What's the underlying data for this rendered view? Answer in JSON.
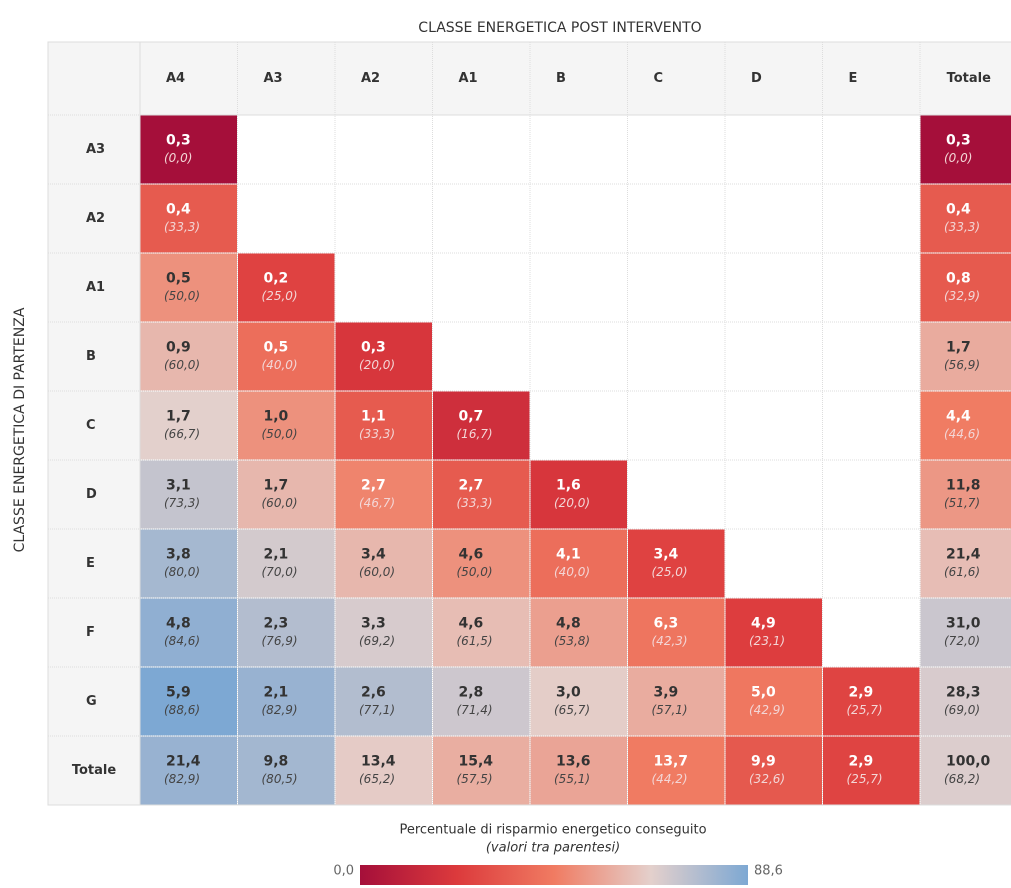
{
  "chart_data": {
    "type": "heatmap",
    "title": "CLASSE ENERGETICA POST INTERVENTO",
    "y_label": "CLASSE ENERGETICA DI PARTENZA",
    "columns": [
      "A4",
      "A3",
      "A2",
      "A1",
      "B",
      "C",
      "D",
      "E",
      "Totale"
    ],
    "rows": [
      "A3",
      "A2",
      "A1",
      "B",
      "C",
      "D",
      "E",
      "F",
      "G",
      "Totale"
    ],
    "values": [
      [
        0.3,
        null,
        null,
        null,
        null,
        null,
        null,
        null,
        0.3
      ],
      [
        0.4,
        null,
        null,
        null,
        null,
        null,
        null,
        null,
        0.4
      ],
      [
        0.5,
        0.2,
        null,
        null,
        null,
        null,
        null,
        null,
        0.8
      ],
      [
        0.9,
        0.5,
        0.3,
        null,
        null,
        null,
        null,
        null,
        1.7
      ],
      [
        1.7,
        1.0,
        1.1,
        0.7,
        null,
        null,
        null,
        null,
        4.4
      ],
      [
        3.1,
        1.7,
        2.7,
        2.7,
        1.6,
        null,
        null,
        null,
        11.8
      ],
      [
        3.8,
        2.1,
        3.4,
        4.6,
        4.1,
        3.4,
        null,
        null,
        21.4
      ],
      [
        4.8,
        2.3,
        3.3,
        4.6,
        4.8,
        6.3,
        4.9,
        null,
        31.0
      ],
      [
        5.9,
        2.1,
        2.6,
        2.8,
        3.0,
        3.9,
        5.0,
        2.9,
        28.3
      ],
      [
        21.4,
        9.8,
        13.4,
        15.4,
        13.6,
        13.7,
        9.9,
        2.9,
        100.0
      ]
    ],
    "value_labels": [
      [
        "0,3",
        null,
        null,
        null,
        null,
        null,
        null,
        null,
        "0,3"
      ],
      [
        "0,4",
        null,
        null,
        null,
        null,
        null,
        null,
        null,
        "0,4"
      ],
      [
        "0,5",
        "0,2",
        null,
        null,
        null,
        null,
        null,
        null,
        "0,8"
      ],
      [
        "0,9",
        "0,5",
        "0,3",
        null,
        null,
        null,
        null,
        null,
        "1,7"
      ],
      [
        "1,7",
        "1,0",
        "1,1",
        "0,7",
        null,
        null,
        null,
        null,
        "4,4"
      ],
      [
        "3,1",
        "1,7",
        "2,7",
        "2,7",
        "1,6",
        null,
        null,
        null,
        "11,8"
      ],
      [
        "3,8",
        "2,1",
        "3,4",
        "4,6",
        "4,1",
        "3,4",
        null,
        null,
        "21,4"
      ],
      [
        "4,8",
        "2,3",
        "3,3",
        "4,6",
        "4,8",
        "6,3",
        "4,9",
        null,
        "31,0"
      ],
      [
        "5,9",
        "2,1",
        "2,6",
        "2,8",
        "3,0",
        "3,9",
        "5,0",
        "2,9",
        "28,3"
      ],
      [
        "21,4",
        "9,8",
        "13,4",
        "15,4",
        "13,6",
        "13,7",
        "9,9",
        "2,9",
        "100,0"
      ]
    ],
    "savings": [
      [
        0.0,
        null,
        null,
        null,
        null,
        null,
        null,
        null,
        0.0
      ],
      [
        33.3,
        null,
        null,
        null,
        null,
        null,
        null,
        null,
        33.3
      ],
      [
        50.0,
        25.0,
        null,
        null,
        null,
        null,
        null,
        null,
        32.9
      ],
      [
        60.0,
        40.0,
        20.0,
        null,
        null,
        null,
        null,
        null,
        56.9
      ],
      [
        66.7,
        50.0,
        33.3,
        16.7,
        null,
        null,
        null,
        null,
        44.6
      ],
      [
        73.3,
        60.0,
        46.7,
        33.3,
        20.0,
        null,
        null,
        null,
        51.7
      ],
      [
        80.0,
        70.0,
        60.0,
        50.0,
        40.0,
        25.0,
        null,
        null,
        61.6
      ],
      [
        84.6,
        76.9,
        69.2,
        61.5,
        53.8,
        42.3,
        23.1,
        null,
        72.0
      ],
      [
        88.6,
        82.9,
        77.1,
        71.4,
        65.7,
        57.1,
        42.9,
        25.7,
        69.0
      ],
      [
        82.9,
        80.5,
        65.2,
        57.5,
        55.1,
        44.2,
        32.6,
        25.7,
        68.2
      ]
    ],
    "savings_labels": [
      [
        "(0,0)",
        null,
        null,
        null,
        null,
        null,
        null,
        null,
        "(0,0)"
      ],
      [
        "(33,3)",
        null,
        null,
        null,
        null,
        null,
        null,
        null,
        "(33,3)"
      ],
      [
        "(50,0)",
        "(25,0)",
        null,
        null,
        null,
        null,
        null,
        null,
        "(32,9)"
      ],
      [
        "(60,0)",
        "(40,0)",
        "(20,0)",
        null,
        null,
        null,
        null,
        null,
        "(56,9)"
      ],
      [
        "(66,7)",
        "(50,0)",
        "(33,3)",
        "(16,7)",
        null,
        null,
        null,
        null,
        "(44,6)"
      ],
      [
        "(73,3)",
        "(60,0)",
        "(46,7)",
        "(33,3)",
        "(20,0)",
        null,
        null,
        null,
        "(51,7)"
      ],
      [
        "(80,0)",
        "(70,0)",
        "(60,0)",
        "(50,0)",
        "(40,0)",
        "(25,0)",
        null,
        null,
        "(61,6)"
      ],
      [
        "(84,6)",
        "(76,9)",
        "(69,2)",
        "(61,5)",
        "(53,8)",
        "(42,3)",
        "(23,1)",
        null,
        "(72,0)"
      ],
      [
        "(88,6)",
        "(82,9)",
        "(77,1)",
        "(71,4)",
        "(65,7)",
        "(57,1)",
        "(42,9)",
        "(25,7)",
        "(69,0)"
      ],
      [
        "(82,9)",
        "(80,5)",
        "(65,2)",
        "(57,5)",
        "(55,1)",
        "(44,2)",
        "(32,6)",
        "(25,7)",
        "(68,2)"
      ]
    ],
    "colorbar_title": "Percentuale di risparmio energetico conseguito",
    "colorbar_subtitle": "(valori tra parentesi)",
    "clim": [
      0.0,
      88.6
    ],
    "cticks": [
      {
        "value": 0.0,
        "label": "0,0"
      },
      {
        "value": 88.6,
        "label": "88,6"
      }
    ],
    "colorscale": [
      "#a50f3a",
      "#dc3a3c",
      "#f07b62",
      "#e4d0cc",
      "#7da8d3"
    ]
  }
}
